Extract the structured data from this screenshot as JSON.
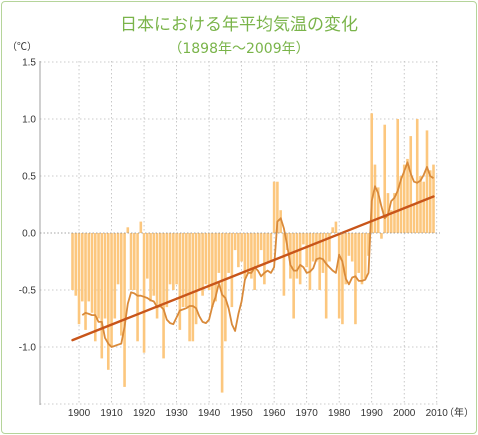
{
  "chart_data": {
    "type": "bar",
    "title": "日本における年平均気温の変化",
    "subtitle": "（1898年～2009年）",
    "ylabel": "（℃）",
    "xlabel": "（年）",
    "ylim": [
      -1.5,
      1.5
    ],
    "xlim": [
      1888,
      2011
    ],
    "y_ticks": [
      "1.5",
      "1.0",
      "0.5",
      "0.0",
      "-0.5",
      "-1.0"
    ],
    "y_tick_values": [
      1.5,
      1.0,
      0.5,
      0.0,
      -0.5,
      -1.0
    ],
    "x_ticks": [
      "1900",
      "1910",
      "1920",
      "1930",
      "1940",
      "1950",
      "1960",
      "1970",
      "1980",
      "1990",
      "2000",
      "2010"
    ],
    "x_tick_values": [
      1900,
      1910,
      1920,
      1930,
      1940,
      1950,
      1960,
      1970,
      1980,
      1990,
      2000,
      2010
    ],
    "grid": true,
    "colors": {
      "bars": "#fcc77e",
      "moving_average": "#d98a3a",
      "trend": "#c8551a",
      "title": "#7ab44a"
    },
    "years": [
      1898,
      1899,
      1900,
      1901,
      1902,
      1903,
      1904,
      1905,
      1906,
      1907,
      1908,
      1909,
      1910,
      1911,
      1912,
      1913,
      1914,
      1915,
      1916,
      1917,
      1918,
      1919,
      1920,
      1921,
      1922,
      1923,
      1924,
      1925,
      1926,
      1927,
      1928,
      1929,
      1930,
      1931,
      1932,
      1933,
      1934,
      1935,
      1936,
      1937,
      1938,
      1939,
      1940,
      1941,
      1942,
      1943,
      1944,
      1945,
      1946,
      1947,
      1948,
      1949,
      1950,
      1951,
      1952,
      1953,
      1954,
      1955,
      1956,
      1957,
      1958,
      1959,
      1960,
      1961,
      1962,
      1963,
      1964,
      1965,
      1966,
      1967,
      1968,
      1969,
      1970,
      1971,
      1972,
      1973,
      1974,
      1975,
      1976,
      1977,
      1978,
      1979,
      1980,
      1981,
      1982,
      1983,
      1984,
      1985,
      1986,
      1987,
      1988,
      1989,
      1990,
      1991,
      1992,
      1993,
      1994,
      1995,
      1996,
      1997,
      1998,
      1999,
      2000,
      2001,
      2002,
      2003,
      2004,
      2005,
      2006,
      2007,
      2008,
      2009
    ],
    "series": [
      {
        "kind": "bar",
        "values": [
          -0.5,
          -0.55,
          -0.8,
          -0.6,
          -0.85,
          -0.6,
          -0.7,
          -0.95,
          -0.75,
          -1.1,
          -0.75,
          -1.2,
          -1.0,
          -0.75,
          -0.45,
          -0.9,
          -1.35,
          0.05,
          -0.5,
          -0.5,
          -0.95,
          0.1,
          -1.05,
          -0.4,
          -0.6,
          -0.55,
          -0.75,
          -0.65,
          -1.1,
          -0.65,
          -0.45,
          -0.5,
          -0.45,
          -0.85,
          -0.65,
          -0.65,
          -0.95,
          -0.95,
          -0.8,
          -0.5,
          -0.55,
          -0.45,
          -0.5,
          -0.65,
          -0.6,
          -0.35,
          -1.4,
          -0.95,
          -0.35,
          -0.65,
          -0.15,
          -0.3,
          -0.25,
          -0.4,
          -0.35,
          -0.4,
          -0.5,
          -0.3,
          -0.15,
          -0.45,
          -0.25,
          -0.25,
          0.45,
          0.45,
          0.2,
          -0.55,
          -0.15,
          -0.4,
          -0.75,
          -0.4,
          -0.45,
          -0.1,
          -0.3,
          -0.5,
          -0.25,
          -0.25,
          -0.5,
          -0.35,
          -0.75,
          -0.25,
          0.05,
          0.1,
          -0.75,
          -0.8,
          -0.45,
          -0.2,
          -0.25,
          -0.8,
          -0.35,
          -0.45,
          -0.4,
          -0.2,
          1.05,
          0.6,
          0.4,
          -0.05,
          0.95,
          0.35,
          0.2,
          0.35,
          1.0,
          0.5,
          0.6,
          0.65,
          0.85,
          0.25,
          1.0,
          0.5,
          0.45,
          0.9,
          0.55,
          0.6
        ]
      },
      {
        "kind": "line",
        "values": [
          -0.72,
          -0.7,
          -0.71,
          -0.72,
          -0.72,
          -0.78,
          -0.78,
          -0.92,
          -0.97,
          -1.0,
          -0.99,
          -0.98,
          -0.97,
          -0.82,
          -0.62,
          -0.52,
          -0.53,
          -0.55,
          -0.55,
          -0.56,
          -0.57,
          -0.59,
          -0.6,
          -0.65,
          -0.64,
          -0.67,
          -0.76,
          -0.79,
          -0.8,
          -0.74,
          -0.68,
          -0.67,
          -0.66,
          -0.64,
          -0.64,
          -0.66,
          -0.73,
          -0.78,
          -0.79,
          -0.76,
          -0.64,
          -0.56,
          -0.44,
          -0.54,
          -0.57,
          -0.66,
          -0.8,
          -0.86,
          -0.71,
          -0.6,
          -0.41,
          -0.35,
          -0.35,
          -0.3,
          -0.33,
          -0.38,
          -0.35,
          -0.33,
          -0.35,
          -0.3,
          0.1,
          0.13,
          0.04,
          -0.11,
          -0.28,
          -0.33,
          -0.33,
          -0.28,
          -0.3,
          -0.35,
          -0.34,
          -0.31,
          -0.23,
          -0.22,
          -0.23,
          -0.27,
          -0.3,
          -0.33,
          -0.35,
          -0.19,
          -0.25,
          -0.4,
          -0.45,
          -0.39,
          -0.38,
          -0.42,
          -0.42,
          -0.41,
          -0.35,
          0.28,
          0.41,
          0.35,
          0.23,
          0.13,
          0.16,
          0.28,
          0.31,
          0.37,
          0.47,
          0.54,
          0.62,
          0.52,
          0.45,
          0.44,
          0.46,
          0.51,
          0.58,
          0.5,
          0.48
        ]
      },
      {
        "kind": "trend",
        "x": [
          1898,
          2009
        ],
        "values": [
          -0.94,
          0.32
        ]
      }
    ]
  }
}
